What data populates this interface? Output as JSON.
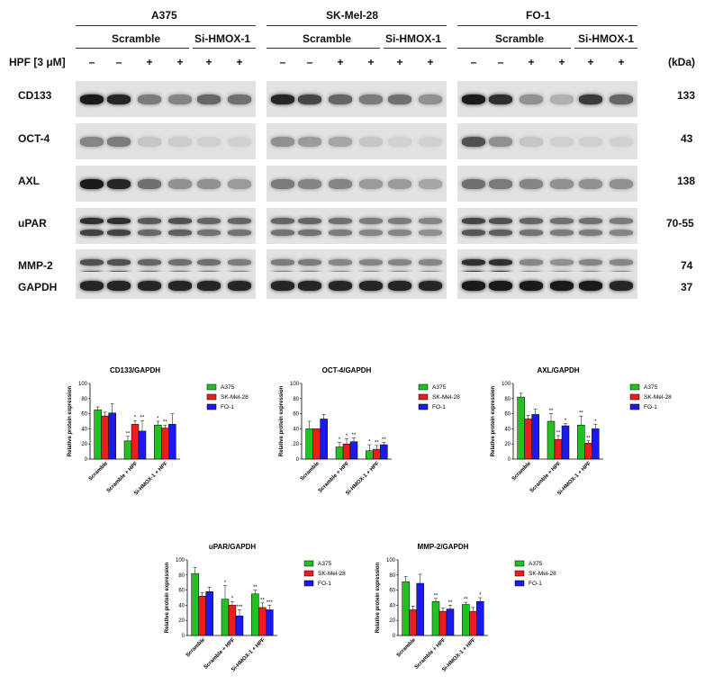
{
  "cell_lines": [
    "A375",
    "SK-Mel-28",
    "FO-1"
  ],
  "groups": {
    "scramble": "Scramble",
    "si_hmox": "Si-HMOX-1"
  },
  "treatment_label": "HPF [3 μM]",
  "treatment_signs": [
    "–",
    "–",
    "+",
    "+",
    "+",
    "+"
  ],
  "kda_header": "(kDa)",
  "proteins": [
    {
      "name": "CD133",
      "kda": "133"
    },
    {
      "name": "OCT-4",
      "kda": "43"
    },
    {
      "name": "AXL",
      "kda": "138"
    },
    {
      "name": "uPAR",
      "kda": "70-55"
    },
    {
      "name": "MMP-2",
      "kda": "74"
    },
    {
      "name": "GAPDH",
      "kda": "37"
    }
  ],
  "colors": {
    "A375": "#22c022",
    "SK-Mel-28": "#ee1c1c",
    "FO-1": "#1a1aee"
  },
  "chart_data": [
    {
      "type": "bar",
      "title": "CD133/GAPDH",
      "ylabel": "Relative protein expression",
      "ylim": [
        0,
        100
      ],
      "yticks": [
        "0",
        "20",
        "40",
        "60",
        "80",
        "100"
      ],
      "categories": [
        "Scramble",
        "Scramble + HPF",
        "Si-HMOX-1 + HPF"
      ],
      "series": [
        {
          "name": "A375",
          "values": [
            65,
            24,
            45
          ],
          "errors": [
            4,
            6,
            5
          ],
          "sig": [
            "",
            "**",
            "*"
          ]
        },
        {
          "name": "SK-Mel-28",
          "values": [
            57,
            46,
            41
          ],
          "errors": [
            5,
            5,
            4
          ],
          "sig": [
            "",
            "*",
            "**"
          ]
        },
        {
          "name": "FO-1",
          "values": [
            61,
            37,
            46
          ],
          "errors": [
            12,
            14,
            14
          ],
          "sig": [
            "",
            "**",
            ""
          ]
        }
      ]
    },
    {
      "type": "bar",
      "title": "OCT-4/GAPDH",
      "ylabel": "Relative protein expression",
      "ylim": [
        0,
        100
      ],
      "yticks": [
        "0",
        "20",
        "40",
        "60",
        "80",
        "100"
      ],
      "categories": [
        "Scramble",
        "Scramble + HPF",
        "Si-HMOX-1 + HPF"
      ],
      "series": [
        {
          "name": "A375",
          "values": [
            40,
            16,
            11
          ],
          "errors": [
            10,
            6,
            8
          ],
          "sig": [
            "",
            "*",
            "*"
          ]
        },
        {
          "name": "SK-Mel-28",
          "values": [
            40,
            20,
            13
          ],
          "errors": [
            0,
            7,
            5
          ],
          "sig": [
            "",
            "*",
            "**"
          ]
        },
        {
          "name": "FO-1",
          "values": [
            53,
            23,
            19
          ],
          "errors": [
            6,
            5,
            3
          ],
          "sig": [
            "",
            "**",
            "**"
          ]
        }
      ]
    },
    {
      "type": "bar",
      "title": "AXL/GAPDH",
      "ylabel": "Relative protein expression",
      "ylim": [
        0,
        100
      ],
      "yticks": [
        "0",
        "20",
        "40",
        "60",
        "80",
        "100"
      ],
      "categories": [
        "Scramble",
        "Scramble + HPF",
        "Si-HMOX-1 + HPF"
      ],
      "series": [
        {
          "name": "A375",
          "values": [
            82,
            50,
            45
          ],
          "errors": [
            5,
            10,
            12
          ],
          "sig": [
            "",
            "**",
            "**"
          ]
        },
        {
          "name": "SK-Mel-28",
          "values": [
            53,
            26,
            21
          ],
          "errors": [
            5,
            5,
            3
          ],
          "sig": [
            "",
            "**",
            "**"
          ]
        },
        {
          "name": "FO-1",
          "values": [
            59,
            44,
            40
          ],
          "errors": [
            7,
            3,
            6
          ],
          "sig": [
            "",
            "*",
            "*"
          ]
        }
      ]
    },
    {
      "type": "bar",
      "title": "uPAR/GAPDH",
      "ylabel": "Relative protein expression",
      "ylim": [
        0,
        100
      ],
      "yticks": [
        "0",
        "20",
        "40",
        "60",
        "80",
        "100"
      ],
      "categories": [
        "Scramble",
        "Scramble + HPF",
        "Si-HMOX-1 + HPF"
      ],
      "series": [
        {
          "name": "A375",
          "values": [
            82,
            48,
            55
          ],
          "errors": [
            8,
            18,
            5
          ],
          "sig": [
            "",
            "*",
            "**"
          ]
        },
        {
          "name": "SK-Mel-28",
          "values": [
            52,
            40,
            37
          ],
          "errors": [
            5,
            5,
            6
          ],
          "sig": [
            "",
            "*",
            "**"
          ]
        },
        {
          "name": "FO-1",
          "values": [
            58,
            26,
            34
          ],
          "errors": [
            6,
            8,
            6
          ],
          "sig": [
            "",
            "***",
            "***"
          ]
        }
      ]
    },
    {
      "type": "bar",
      "title": "MMP-2/GAPDH",
      "ylabel": "Relative protein expression",
      "ylim": [
        0,
        100
      ],
      "yticks": [
        "0",
        "20",
        "40",
        "60",
        "80",
        "100"
      ],
      "categories": [
        "Scramble",
        "Scramble + HPF",
        "Si-HMOX-1 + HPF"
      ],
      "series": [
        {
          "name": "A375",
          "values": [
            71,
            45,
            41
          ],
          "errors": [
            7,
            4,
            3
          ],
          "sig": [
            "",
            "**",
            "**"
          ]
        },
        {
          "name": "SK-Mel-28",
          "values": [
            34,
            32,
            32
          ],
          "errors": [
            5,
            4,
            5
          ],
          "sig": [
            "",
            "",
            ""
          ]
        },
        {
          "name": "FO-1",
          "values": [
            69,
            35,
            45
          ],
          "errors": [
            12,
            5,
            5
          ],
          "sig": [
            "",
            "**",
            "*"
          ]
        }
      ]
    }
  ]
}
